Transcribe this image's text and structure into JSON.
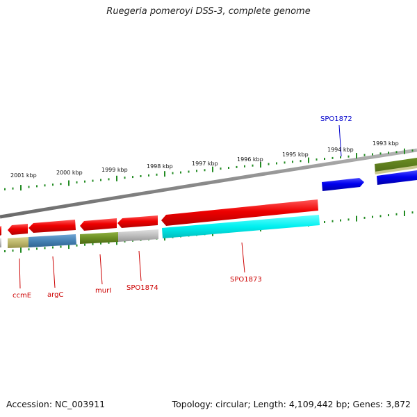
{
  "title": "Ruegeria pomeroyi DSS-3, complete genome",
  "footer": {
    "accession": "Accession: NC_003911",
    "summary": "Topology: circular; Length: 4,109,442 bp; Genes: 3,872"
  },
  "ruler": {
    "labels": [
      "2001 kbp",
      "2000 kbp",
      "1999 kbp",
      "1998 kbp",
      "1997 kbp",
      "1996 kbp",
      "1995 kbp",
      "1994 kbp",
      "1993 kbp"
    ]
  },
  "gene_labels": [
    {
      "name": "SPO1872",
      "color": "#0000cc"
    },
    {
      "name": "ccmE",
      "color": "#cc0000"
    },
    {
      "name": "argC",
      "color": "#cc0000"
    },
    {
      "name": "murI",
      "color": "#cc0000"
    },
    {
      "name": "SPO1874",
      "color": "#cc0000"
    },
    {
      "name": "SPO1873",
      "color": "#cc0000"
    }
  ],
  "colors": {
    "forward_gene": "#0000ee",
    "reverse_gene": "#ee0000",
    "ruler_tick": "#228b22",
    "backbone": "#8c8c8c",
    "cog_cyan": "#00ffff",
    "cog_olive": "#6b8e23",
    "cog_steelblue": "#4682b4",
    "cog_khaki": "#bdb76b",
    "cog_grey": "#bbbbbb"
  }
}
